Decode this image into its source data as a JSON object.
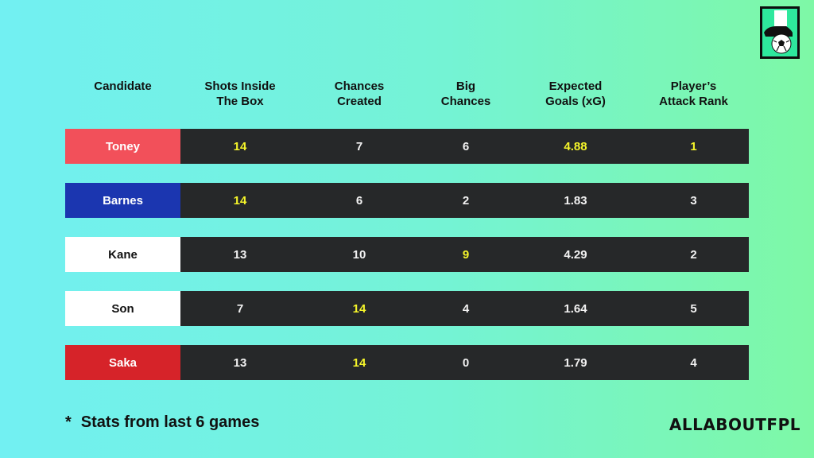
{
  "headers": [
    "Candidate",
    "Shots Inside\nThe Box",
    "Chances\nCreated",
    "Big\nChances",
    "Expected\nGoals (xG)",
    "Player’s\nAttack Rank"
  ],
  "rows": [
    {
      "name": "Toney",
      "name_bg": "#f2505a",
      "name_color": "#ffffff",
      "values": [
        "14",
        "7",
        "6",
        "4.88",
        "1"
      ],
      "highlight": [
        true,
        false,
        false,
        true,
        true
      ]
    },
    {
      "name": "Barnes",
      "name_bg": "#1b36b0",
      "name_color": "#ffffff",
      "values": [
        "14",
        "6",
        "2",
        "1.83",
        "3"
      ],
      "highlight": [
        true,
        false,
        false,
        false,
        false
      ]
    },
    {
      "name": "Kane",
      "name_bg": "#ffffff",
      "name_color": "#111111",
      "values": [
        "13",
        "10",
        "9",
        "4.29",
        "2"
      ],
      "highlight": [
        false,
        false,
        true,
        false,
        false
      ]
    },
    {
      "name": "Son",
      "name_bg": "#ffffff",
      "name_color": "#111111",
      "values": [
        "7",
        "14",
        "4",
        "1.64",
        "5"
      ],
      "highlight": [
        false,
        true,
        false,
        false,
        false
      ]
    },
    {
      "name": "Saka",
      "name_bg": "#d62329",
      "name_color": "#ffffff",
      "values": [
        "13",
        "14",
        "0",
        "1.79",
        "4"
      ],
      "highlight": [
        false,
        true,
        false,
        false,
        false
      ]
    }
  ],
  "footnote": {
    "star": "*",
    "text": "Stats from last 6 games"
  },
  "brand": "ALLABOUTFPL",
  "colors": {
    "row_bg": "#262829",
    "highlight": "#f5f52a",
    "value": "#f2f2f2"
  },
  "logo_icon": "boot-and-football-icon"
}
